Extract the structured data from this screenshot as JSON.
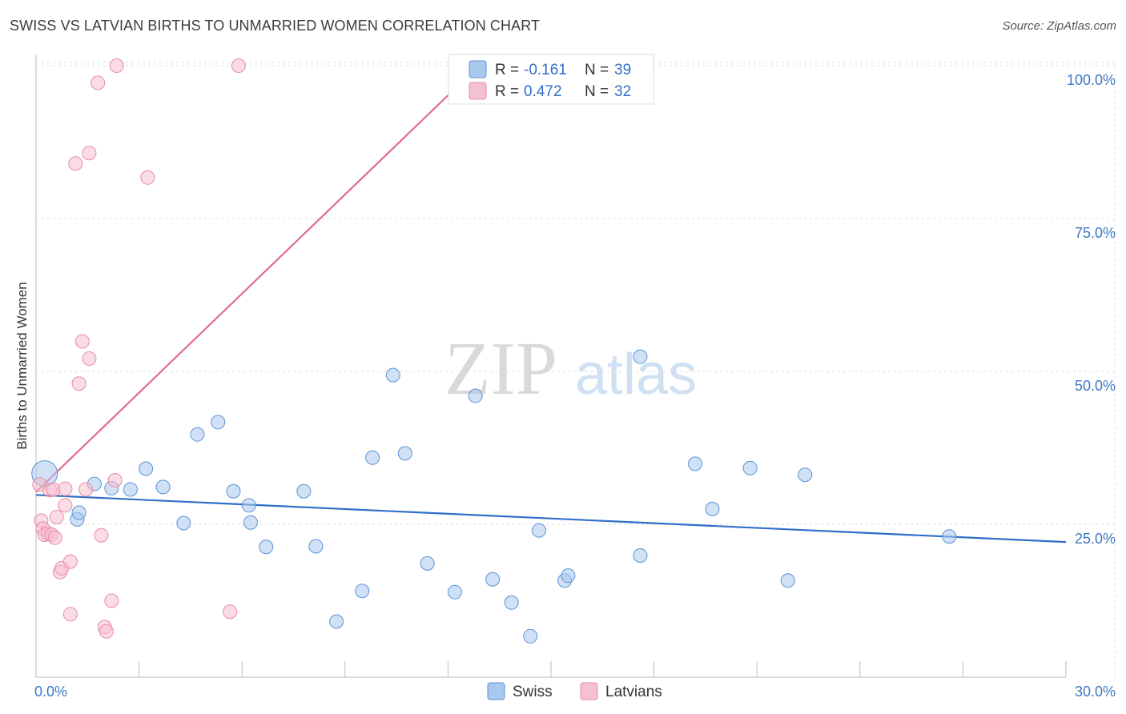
{
  "header": {
    "title": "SWISS VS LATVIAN BIRTHS TO UNMARRIED WOMEN CORRELATION CHART",
    "source": "Source: ZipAtlas.com"
  },
  "watermark": {
    "zip": "ZIP",
    "atlas": "atlas"
  },
  "chart_data": {
    "type": "scatter",
    "ylabel": "Births to Unmarried Women",
    "xlim": [
      0,
      30
    ],
    "ylim": [
      0,
      105
    ],
    "x_tick_labels": [
      {
        "value": 0,
        "label": "0.0%"
      },
      {
        "value": 30,
        "label": "30.0%"
      }
    ],
    "y_tick_labels": [
      {
        "value": 25,
        "label": "25.0%"
      },
      {
        "value": 50,
        "label": "50.0%"
      },
      {
        "value": 75,
        "label": "75.0%"
      },
      {
        "value": 100,
        "label": "100.0%"
      }
    ],
    "legend": {
      "r_label": "R =",
      "n_label": "N =",
      "entries": [
        {
          "series": "Swiss",
          "r": "-0.161",
          "n": "39"
        },
        {
          "series": "Latvians",
          "r": "0.472",
          "n": "32"
        }
      ]
    },
    "series": [
      {
        "name": "Swiss",
        "color": "#5b93d6",
        "fill": "#a9c8ee",
        "trend": {
          "x0": 0,
          "y0": 29.8,
          "x1": 30,
          "y1": 22.1,
          "color": "#2f6fc7"
        },
        "points": [
          {
            "x": 0.25,
            "y": 33.3,
            "big": true
          },
          {
            "x": 1.2,
            "y": 25.8
          },
          {
            "x": 1.25,
            "y": 26.9
          },
          {
            "x": 1.7,
            "y": 31.6
          },
          {
            "x": 2.2,
            "y": 30.9
          },
          {
            "x": 2.75,
            "y": 30.7
          },
          {
            "x": 3.2,
            "y": 34.1
          },
          {
            "x": 3.7,
            "y": 31.1
          },
          {
            "x": 4.3,
            "y": 25.2
          },
          {
            "x": 4.7,
            "y": 39.7
          },
          {
            "x": 5.3,
            "y": 41.7
          },
          {
            "x": 5.75,
            "y": 30.4
          },
          {
            "x": 6.2,
            "y": 28.1
          },
          {
            "x": 6.25,
            "y": 25.3
          },
          {
            "x": 6.7,
            "y": 21.3
          },
          {
            "x": 7.8,
            "y": 30.4
          },
          {
            "x": 8.15,
            "y": 21.4
          },
          {
            "x": 8.75,
            "y": 9.1
          },
          {
            "x": 9.5,
            "y": 14.1
          },
          {
            "x": 9.8,
            "y": 35.9
          },
          {
            "x": 10.4,
            "y": 49.4
          },
          {
            "x": 10.75,
            "y": 36.6
          },
          {
            "x": 11.4,
            "y": 18.6
          },
          {
            "x": 12.2,
            "y": 13.9
          },
          {
            "x": 12.8,
            "y": 46.0
          },
          {
            "x": 13.3,
            "y": 16.0
          },
          {
            "x": 13.85,
            "y": 12.2
          },
          {
            "x": 14.4,
            "y": 6.7
          },
          {
            "x": 14.65,
            "y": 24.0
          },
          {
            "x": 15.4,
            "y": 15.8
          },
          {
            "x": 15.5,
            "y": 16.6
          },
          {
            "x": 17.6,
            "y": 52.4
          },
          {
            "x": 17.6,
            "y": 19.9
          },
          {
            "x": 19.2,
            "y": 34.9
          },
          {
            "x": 19.7,
            "y": 27.5
          },
          {
            "x": 20.8,
            "y": 34.2
          },
          {
            "x": 21.9,
            "y": 15.8
          },
          {
            "x": 22.4,
            "y": 33.1
          },
          {
            "x": 26.6,
            "y": 23.0
          }
        ]
      },
      {
        "name": "Latvians",
        "color": "#e98aa8",
        "fill": "#f5c0d0",
        "trend": {
          "x0": 0,
          "y0": 30.3,
          "x1": 12.9,
          "y1": 100,
          "color": "#e26a92"
        },
        "points": [
          {
            "x": 0.1,
            "y": 31.5
          },
          {
            "x": 0.15,
            "y": 25.6
          },
          {
            "x": 0.2,
            "y": 24.3
          },
          {
            "x": 0.25,
            "y": 23.3
          },
          {
            "x": 0.35,
            "y": 23.5
          },
          {
            "x": 0.4,
            "y": 30.6
          },
          {
            "x": 0.45,
            "y": 23.3
          },
          {
            "x": 0.5,
            "y": 30.7
          },
          {
            "x": 0.55,
            "y": 22.8
          },
          {
            "x": 0.6,
            "y": 26.2
          },
          {
            "x": 0.7,
            "y": 17.2
          },
          {
            "x": 0.75,
            "y": 17.8
          },
          {
            "x": 0.85,
            "y": 28.1
          },
          {
            "x": 0.85,
            "y": 30.8
          },
          {
            "x": 1.0,
            "y": 18.9
          },
          {
            "x": 1.0,
            "y": 10.3
          },
          {
            "x": 1.15,
            "y": 84.0
          },
          {
            "x": 1.25,
            "y": 48.0
          },
          {
            "x": 1.35,
            "y": 54.9
          },
          {
            "x": 1.45,
            "y": 30.7
          },
          {
            "x": 1.55,
            "y": 52.1
          },
          {
            "x": 1.55,
            "y": 85.7
          },
          {
            "x": 1.8,
            "y": 97.2
          },
          {
            "x": 1.9,
            "y": 23.2
          },
          {
            "x": 2.0,
            "y": 8.2
          },
          {
            "x": 2.05,
            "y": 7.5
          },
          {
            "x": 2.2,
            "y": 12.5
          },
          {
            "x": 2.3,
            "y": 32.2
          },
          {
            "x": 2.35,
            "y": 100.0
          },
          {
            "x": 3.25,
            "y": 81.7
          },
          {
            "x": 5.65,
            "y": 10.7
          },
          {
            "x": 5.9,
            "y": 100.0
          }
        ]
      }
    ]
  }
}
